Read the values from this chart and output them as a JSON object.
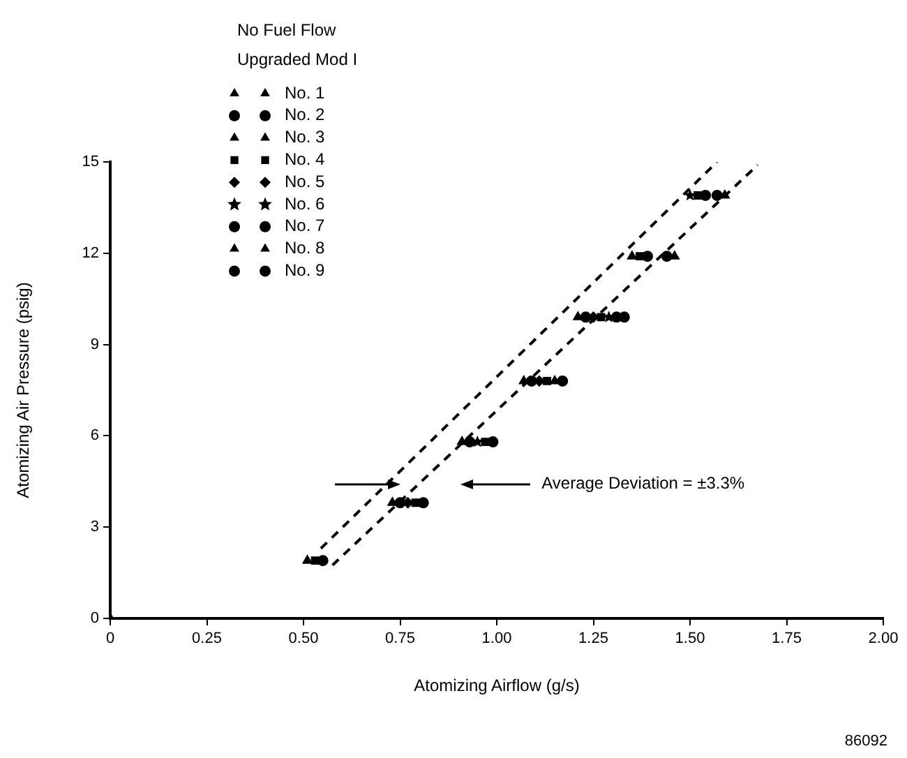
{
  "chart_data": {
    "type": "scatter",
    "xlabel": "Atomizing Airflow (g/s)",
    "ylabel": "Atomizing Air Pressure (psig)",
    "legend_title": "No Fuel Flow\nUpgraded Mod I",
    "legend": "top left",
    "grid": false,
    "xlim": [
      0,
      2
    ],
    "ylim": [
      0,
      15
    ],
    "xticks": [
      0,
      0.25,
      {
        "value": 0.5,
        "label": "0.50"
      },
      0.75,
      {
        "value": 1,
        "label": "1.00"
      },
      1.25,
      {
        "value": 1.5,
        "label": "1.50"
      },
      1.75,
      {
        "value": 2,
        "label": "2.00"
      }
    ],
    "yticks": [
      0,
      3,
      6,
      9,
      12,
      15
    ],
    "series": [
      {
        "name": "No. 1",
        "color": "#000000",
        "marker": "triangle",
        "x": [
          0,
          0.51
        ],
        "values": [
          0,
          1.9
        ]
      },
      {
        "name": "No. 2",
        "color": "#000000",
        "marker": "circle",
        "x": [
          0.75,
          0.93,
          1.09,
          1.23,
          1.39,
          1.54
        ],
        "values": [
          3.8,
          5.8,
          7.8,
          9.9,
          11.9,
          13.9
        ]
      },
      {
        "name": "No. 3",
        "color": "#000000",
        "marker": "triangle",
        "x": [
          0.73,
          0.91,
          1.07,
          1.21,
          1.35
        ],
        "values": [
          3.8,
          5.8,
          7.8,
          9.9,
          11.9
        ]
      },
      {
        "name": "No. 4",
        "color": "#000000",
        "marker": "square",
        "x": [
          0.53,
          0.79,
          0.97,
          1.13,
          1.27,
          1.37,
          1.52
        ],
        "values": [
          1.9,
          3.8,
          5.8,
          7.8,
          9.9,
          11.9,
          13.9
        ]
      },
      {
        "name": "No. 5",
        "color": "#000000",
        "marker": "diamond",
        "x": [
          0.77,
          1.11,
          1.25
        ],
        "values": [
          3.8,
          7.8,
          9.9
        ]
      },
      {
        "name": "No. 6",
        "color": "#000000",
        "marker": "star",
        "x": [
          0.95,
          1.29,
          1.5
        ],
        "values": [
          5.8,
          9.9,
          13.9
        ]
      },
      {
        "name": "No. 7",
        "color": "#000000",
        "marker": "circle",
        "x": [
          0.55,
          0.81,
          0.99,
          1.17,
          1.31,
          1.44,
          1.57
        ],
        "values": [
          1.9,
          3.8,
          5.8,
          7.8,
          9.9,
          11.9,
          13.9
        ]
      },
      {
        "name": "No. 8",
        "color": "#000000",
        "marker": "triangle",
        "x": [
          1.15,
          1.46,
          1.59
        ],
        "values": [
          7.8,
          11.9,
          13.9
        ]
      },
      {
        "name": "No. 9",
        "color": "#000000",
        "marker": "circle",
        "x": [
          1.33
        ],
        "values": [
          9.9
        ]
      },
      {
        "type": "line",
        "color": "#000000",
        "marker": "none",
        "line_style": "dashed",
        "x": [
          0.545,
          1.57
        ],
        "values": [
          2.3,
          15
        ]
      },
      {
        "type": "line",
        "color": "#000000",
        "marker": "none",
        "line_style": "dashed",
        "x": [
          0.575,
          1.675
        ],
        "values": [
          1.75,
          14.9
        ]
      }
    ],
    "annotations": [
      "Average Deviation = ±3.3%",
      "86092"
    ]
  }
}
